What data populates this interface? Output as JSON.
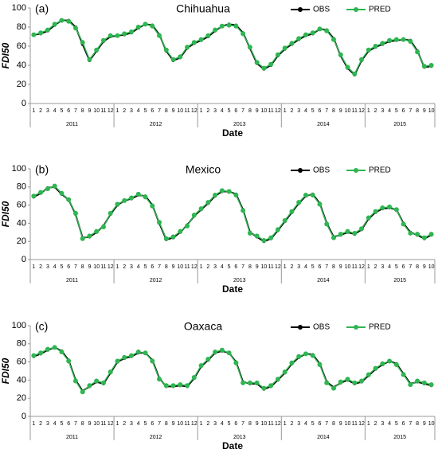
{
  "chart_data": [
    {
      "type": "line",
      "panel_label": "(a)",
      "title": "Chihuahua",
      "ylabel": "FDI50",
      "xlabel": "Date",
      "categories": [
        "1",
        "2",
        "3",
        "4",
        "5",
        "6",
        "7",
        "8",
        "9",
        "10",
        "11",
        "12",
        "1",
        "2",
        "3",
        "4",
        "5",
        "6",
        "7",
        "8",
        "9",
        "10",
        "11",
        "12",
        "1",
        "2",
        "3",
        "4",
        "5",
        "6",
        "7",
        "8",
        "9",
        "10",
        "11",
        "12",
        "1",
        "2",
        "3",
        "4",
        "5",
        "6",
        "7",
        "8",
        "9",
        "10",
        "11",
        "12",
        "1",
        "2",
        "3",
        "4",
        "5",
        "6",
        "7",
        "8",
        "9",
        "10"
      ],
      "years": [
        "2011",
        "2012",
        "2013",
        "2014",
        "2015"
      ],
      "ylim": [
        0,
        100
      ],
      "yticks": [
        0,
        20,
        40,
        60,
        80,
        100
      ],
      "legend": "top-right",
      "series": [
        {
          "name": "OBS",
          "color": "#000000",
          "values": [
            72,
            73,
            76,
            82,
            87,
            87,
            80,
            62,
            45,
            55,
            65,
            70,
            71,
            72,
            74,
            79,
            83,
            82,
            72,
            55,
            45,
            48,
            58,
            63,
            66,
            70,
            76,
            81,
            83,
            82,
            74,
            58,
            42,
            36,
            40,
            50,
            57,
            62,
            67,
            71,
            73,
            78,
            77,
            68,
            50,
            37,
            30,
            45,
            55,
            59,
            62,
            65,
            66,
            67,
            66,
            55,
            38,
            39
          ]
        },
        {
          "name": "PRED",
          "color": "#2fb552",
          "values": [
            72,
            74,
            77,
            83,
            87,
            86,
            79,
            64,
            46,
            56,
            66,
            71,
            71,
            73,
            75,
            80,
            83,
            81,
            71,
            56,
            46,
            49,
            59,
            64,
            67,
            71,
            77,
            81,
            82,
            81,
            73,
            59,
            43,
            37,
            41,
            51,
            58,
            63,
            68,
            72,
            74,
            78,
            76,
            67,
            51,
            38,
            31,
            46,
            56,
            60,
            63,
            66,
            67,
            67,
            65,
            54,
            39,
            40
          ]
        }
      ]
    },
    {
      "type": "line",
      "panel_label": "(b)",
      "title": "Mexico",
      "ylabel": "FDI50",
      "xlabel": "Date",
      "categories": [
        "1",
        "2",
        "3",
        "4",
        "5",
        "6",
        "7",
        "8",
        "9",
        "10",
        "11",
        "12",
        "1",
        "2",
        "3",
        "4",
        "5",
        "6",
        "7",
        "8",
        "9",
        "10",
        "11",
        "12",
        "1",
        "2",
        "3",
        "4",
        "5",
        "6",
        "7",
        "8",
        "9",
        "10",
        "11",
        "12",
        "1",
        "2",
        "3",
        "4",
        "5",
        "6",
        "7",
        "8",
        "9",
        "10",
        "11",
        "12",
        "1",
        "2",
        "3",
        "4",
        "5",
        "6",
        "7",
        "8",
        "9",
        "10"
      ],
      "years": [
        "2011",
        "2012",
        "2013",
        "2014",
        "2015"
      ],
      "ylim": [
        0,
        100
      ],
      "yticks": [
        0,
        20,
        40,
        60,
        80,
        100
      ],
      "legend": "top-right",
      "series": [
        {
          "name": "OBS",
          "color": "#000000",
          "values": [
            69,
            73,
            79,
            80,
            72,
            66,
            50,
            24,
            25,
            30,
            37,
            50,
            60,
            65,
            67,
            71,
            70,
            60,
            40,
            22,
            24,
            30,
            38,
            48,
            55,
            62,
            70,
            75,
            75,
            72,
            55,
            30,
            25,
            20,
            23,
            32,
            42,
            52,
            62,
            70,
            72,
            62,
            40,
            25,
            27,
            30,
            28,
            33,
            45,
            52,
            56,
            57,
            55,
            40,
            30,
            27,
            23,
            27
          ]
        },
        {
          "name": "PRED",
          "color": "#2fb552",
          "values": [
            70,
            74,
            78,
            81,
            73,
            66,
            51,
            23,
            26,
            31,
            36,
            51,
            61,
            65,
            68,
            72,
            69,
            59,
            41,
            23,
            25,
            31,
            37,
            49,
            56,
            63,
            71,
            76,
            75,
            71,
            54,
            29,
            26,
            21,
            24,
            33,
            43,
            53,
            63,
            71,
            71,
            61,
            39,
            24,
            28,
            31,
            29,
            34,
            46,
            53,
            57,
            58,
            55,
            39,
            29,
            28,
            24,
            28
          ]
        }
      ]
    },
    {
      "type": "line",
      "panel_label": "(c)",
      "title": "Oaxaca",
      "ylabel": "FDI50",
      "xlabel": "Date",
      "categories": [
        "1",
        "2",
        "3",
        "4",
        "5",
        "6",
        "7",
        "8",
        "9",
        "10",
        "11",
        "12",
        "1",
        "2",
        "3",
        "4",
        "5",
        "6",
        "7",
        "8",
        "9",
        "10",
        "11",
        "12",
        "1",
        "2",
        "3",
        "4",
        "5",
        "6",
        "7",
        "8",
        "9",
        "10",
        "11",
        "12",
        "1",
        "2",
        "3",
        "4",
        "5",
        "6",
        "7",
        "8",
        "9",
        "10",
        "11",
        "12",
        "1",
        "2",
        "3",
        "4",
        "5",
        "6",
        "7",
        "8",
        "9",
        "10"
      ],
      "years": [
        "2011",
        "2012",
        "2013",
        "2014",
        "2015"
      ],
      "ylim": [
        0,
        100
      ],
      "yticks": [
        0,
        20,
        40,
        60,
        80,
        100
      ],
      "legend": "top-right",
      "series": [
        {
          "name": "OBS",
          "color": "#000000",
          "values": [
            66,
            69,
            73,
            76,
            72,
            62,
            40,
            28,
            33,
            38,
            36,
            48,
            60,
            64,
            66,
            70,
            70,
            62,
            42,
            33,
            33,
            34,
            33,
            42,
            55,
            62,
            70,
            72,
            70,
            60,
            38,
            36,
            36,
            30,
            33,
            40,
            48,
            58,
            65,
            69,
            68,
            58,
            38,
            32,
            37,
            40,
            36,
            38,
            45,
            52,
            57,
            61,
            58,
            47,
            36,
            38,
            36,
            34
          ]
        },
        {
          "name": "PRED",
          "color": "#2fb552",
          "values": [
            67,
            70,
            74,
            76,
            71,
            61,
            39,
            27,
            34,
            39,
            37,
            49,
            61,
            65,
            67,
            71,
            70,
            61,
            41,
            34,
            34,
            35,
            34,
            43,
            56,
            63,
            71,
            73,
            70,
            59,
            37,
            37,
            37,
            31,
            34,
            41,
            49,
            59,
            66,
            69,
            67,
            57,
            37,
            31,
            38,
            41,
            37,
            39,
            46,
            53,
            58,
            61,
            57,
            46,
            35,
            39,
            37,
            35
          ]
        }
      ]
    }
  ]
}
